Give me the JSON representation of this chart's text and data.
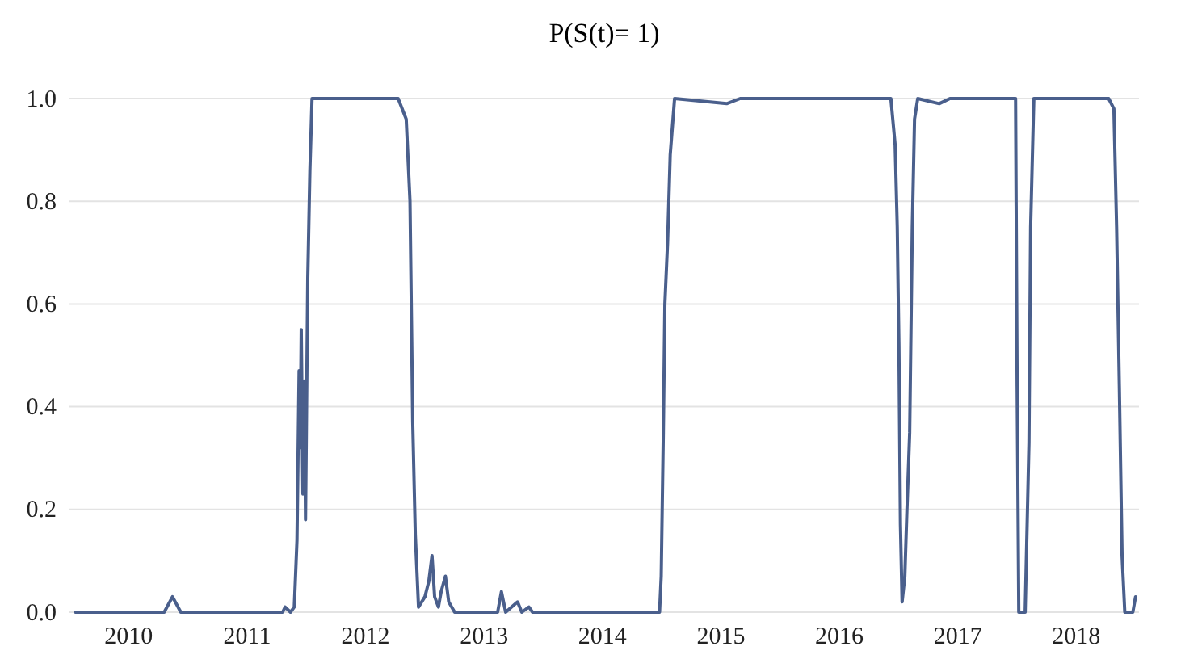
{
  "chart_data": {
    "type": "line",
    "title": "P(S(t)= 1)",
    "x": [
      2010.05,
      2010.8,
      2010.87,
      2010.94,
      2011.8,
      2011.821,
      2011.866,
      2011.898,
      2011.921,
      2011.939,
      2011.948,
      2011.957,
      2011.971,
      2011.984,
      2011.993,
      2012.012,
      2012.03,
      2012.048,
      2012.775,
      2012.843,
      2012.875,
      2012.898,
      2012.92,
      2012.947,
      2013.001,
      2013.034,
      2013.061,
      2013.083,
      2013.115,
      2013.138,
      2013.174,
      2013.202,
      2013.252,
      2013.615,
      2013.647,
      2013.683,
      2013.783,
      2013.819,
      2013.879,
      2013.91,
      2014.982,
      2014.996,
      2015.014,
      2015.027,
      2015.05,
      2015.072,
      2015.109,
      2015.549,
      2015.663,
      2016.935,
      2016.971,
      2016.989,
      2017.003,
      2017.016,
      2017.03,
      2017.053,
      2017.071,
      2017.094,
      2017.116,
      2017.135,
      2017.162,
      2017.343,
      2017.434,
      2017.988,
      2018.001,
      2018.015,
      2018.069,
      2018.101,
      2018.115,
      2018.142,
      2018.774,
      2018.818,
      2018.841,
      2018.864,
      2018.887,
      2018.91,
      2018.978,
      2019.001
    ],
    "series": [
      {
        "color": "#4a5f8c",
        "values": [
          0,
          0,
          0.03,
          0,
          0,
          0.01,
          0,
          0.01,
          0.14,
          0.47,
          0.32,
          0.55,
          0.23,
          0.45,
          0.18,
          0.65,
          0.86,
          1,
          1,
          0.96,
          0.8,
          0.37,
          0.15,
          0.01,
          0.03,
          0.06,
          0.11,
          0.03,
          0.01,
          0.04,
          0.07,
          0.02,
          0,
          0,
          0.04,
          0,
          0.02,
          0,
          0.01,
          0,
          0,
          0.07,
          0.35,
          0.6,
          0.72,
          0.89,
          1,
          0.99,
          1,
          1,
          0.91,
          0.75,
          0.52,
          0.17,
          0.02,
          0.07,
          0.2,
          0.35,
          0.75,
          0.96,
          1,
          0.99,
          1,
          1,
          0.44,
          0,
          0,
          0.33,
          0.75,
          1,
          1,
          0.98,
          0.75,
          0.44,
          0.11,
          0,
          0,
          0.03
        ]
      }
    ],
    "xlim": [
      2010,
      2019.03
    ],
    "xticks": [
      {
        "value": 2010.5,
        "label": "2010"
      },
      {
        "value": 2011.5,
        "label": "2011"
      },
      {
        "value": 2012.5,
        "label": "2012"
      },
      {
        "value": 2013.5,
        "label": "2013"
      },
      {
        "value": 2014.5,
        "label": "2014"
      },
      {
        "value": 2015.5,
        "label": "2015"
      },
      {
        "value": 2016.5,
        "label": "2016"
      },
      {
        "value": 2017.5,
        "label": "2017"
      },
      {
        "value": 2018.5,
        "label": "2018"
      }
    ],
    "ylim": [
      0,
      1
    ],
    "yticks": [
      {
        "value": 0,
        "label": "0.0"
      },
      {
        "value": 0.2,
        "label": "0.2"
      },
      {
        "value": 0.4,
        "label": "0.4"
      },
      {
        "value": 0.6,
        "label": "0.6"
      },
      {
        "value": 0.8,
        "label": "0.8"
      },
      {
        "value": 1,
        "label": "1.0"
      }
    ],
    "grid": "y"
  }
}
